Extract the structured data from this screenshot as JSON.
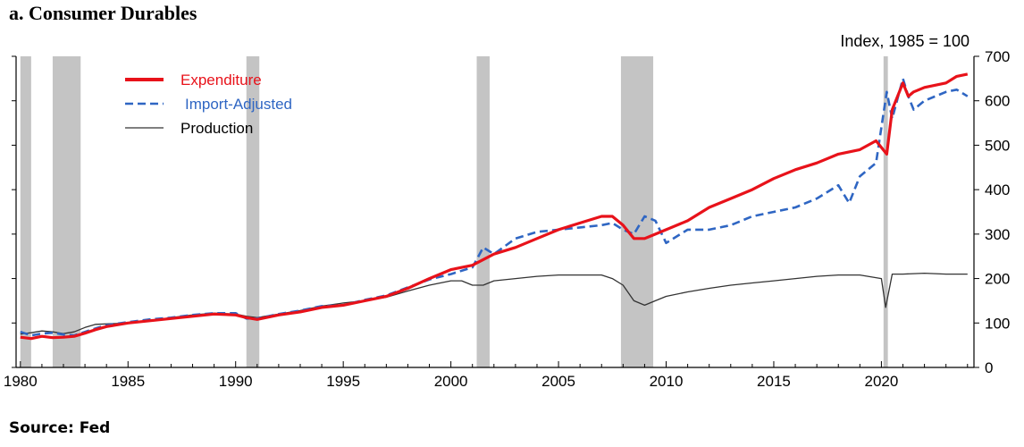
{
  "title": "a.   Consumer Durables",
  "source": "Source: Fed",
  "chart_data": {
    "type": "line",
    "ylabel": "Index, 1985 = 100",
    "ylim": [
      0,
      700
    ],
    "y_ticks": [
      0,
      100,
      200,
      300,
      400,
      500,
      600,
      700
    ],
    "xlim": [
      1979.8,
      2024.3
    ],
    "x_ticks": [
      1980,
      1985,
      1990,
      1995,
      2000,
      2005,
      2010,
      2015,
      2020
    ],
    "y_axis_side": "right",
    "grid": false,
    "legend_position": "top-left",
    "recessions": [
      [
        1980.0,
        1980.5
      ],
      [
        1981.5,
        1982.8
      ],
      [
        1990.5,
        1991.1
      ],
      [
        2001.2,
        2001.8
      ],
      [
        2007.9,
        2009.4
      ],
      [
        2020.1,
        2020.3
      ]
    ],
    "series": [
      {
        "name": "Expenditure",
        "color": "#e8121a",
        "style": "solid",
        "x": [
          1980.0,
          1980.5,
          1981.0,
          1981.5,
          1982.0,
          1982.5,
          1983.0,
          1983.5,
          1984.0,
          1985.0,
          1986.0,
          1987.0,
          1988.0,
          1989.0,
          1990.0,
          1990.5,
          1991.0,
          1992.0,
          1993.0,
          1994.0,
          1995.0,
          1996.0,
          1997.0,
          1998.0,
          1999.0,
          2000.0,
          2001.0,
          2002.0,
          2003.0,
          2004.0,
          2005.0,
          2006.0,
          2007.0,
          2007.5,
          2008.0,
          2008.5,
          2009.0,
          2009.5,
          2010.0,
          2011.0,
          2012.0,
          2013.0,
          2014.0,
          2015.0,
          2016.0,
          2017.0,
          2018.0,
          2019.0,
          2019.75,
          2020.25,
          2020.5,
          2021.0,
          2021.25,
          2021.5,
          2022.0,
          2023.0,
          2023.5,
          2024.0
        ],
        "values": [
          68,
          65,
          70,
          67,
          68,
          70,
          77,
          85,
          92,
          100,
          105,
          110,
          115,
          120,
          118,
          112,
          108,
          118,
          125,
          135,
          140,
          150,
          160,
          178,
          200,
          220,
          230,
          255,
          270,
          290,
          310,
          325,
          340,
          340,
          320,
          290,
          290,
          300,
          310,
          330,
          360,
          380,
          400,
          425,
          445,
          460,
          480,
          490,
          510,
          480,
          580,
          640,
          610,
          620,
          630,
          640,
          655,
          660
        ]
      },
      {
        "name": "Import-Adjusted",
        "color": "#2f66c3",
        "style": "dashed",
        "x": [
          1980.0,
          1980.5,
          1981.0,
          1981.5,
          1982.0,
          1982.5,
          1983.0,
          1983.5,
          1984.0,
          1985.0,
          1986.0,
          1987.0,
          1988.0,
          1989.0,
          1990.0,
          1990.5,
          1991.0,
          1992.0,
          1993.0,
          1994.0,
          1995.0,
          1996.0,
          1997.0,
          1998.0,
          1999.0,
          2000.0,
          2001.0,
          2001.5,
          2002.0,
          2003.0,
          2004.0,
          2005.0,
          2006.0,
          2007.0,
          2007.5,
          2008.0,
          2008.5,
          2009.0,
          2009.5,
          2010.0,
          2011.0,
          2012.0,
          2013.0,
          2014.0,
          2015.0,
          2016.0,
          2017.0,
          2018.0,
          2018.5,
          2019.0,
          2019.75,
          2020.25,
          2020.5,
          2021.0,
          2021.25,
          2021.5,
          2022.0,
          2023.0,
          2023.5,
          2024.0
        ],
        "values": [
          80,
          72,
          76,
          78,
          74,
          72,
          80,
          88,
          95,
          102,
          108,
          112,
          118,
          122,
          122,
          110,
          110,
          120,
          128,
          138,
          140,
          152,
          162,
          180,
          198,
          210,
          225,
          270,
          255,
          290,
          305,
          310,
          315,
          320,
          325,
          310,
          300,
          340,
          330,
          280,
          310,
          310,
          320,
          340,
          350,
          360,
          380,
          410,
          370,
          430,
          460,
          620,
          560,
          650,
          610,
          580,
          600,
          620,
          625,
          610
        ]
      },
      {
        "name": "Production",
        "color": "#333333",
        "style": "solid",
        "x": [
          1980.0,
          1980.5,
          1981.0,
          1981.5,
          1982.0,
          1982.5,
          1983.0,
          1983.5,
          1984.0,
          1985.0,
          1986.0,
          1987.0,
          1988.0,
          1989.0,
          1990.0,
          1990.5,
          1991.0,
          1992.0,
          1993.0,
          1994.0,
          1995.0,
          1996.0,
          1997.0,
          1998.0,
          1999.0,
          2000.0,
          2000.5,
          2001.0,
          2001.5,
          2002.0,
          2003.0,
          2004.0,
          2005.0,
          2006.0,
          2007.0,
          2007.5,
          2008.0,
          2008.5,
          2009.0,
          2009.5,
          2010.0,
          2011.0,
          2012.0,
          2013.0,
          2014.0,
          2015.0,
          2016.0,
          2017.0,
          2018.0,
          2019.0,
          2020.0,
          2020.2,
          2020.5,
          2021.0,
          2022.0,
          2023.0,
          2024.0
        ],
        "values": [
          75,
          78,
          82,
          80,
          76,
          80,
          90,
          97,
          98,
          100,
          105,
          112,
          118,
          122,
          120,
          115,
          112,
          120,
          128,
          138,
          145,
          150,
          158,
          172,
          185,
          195,
          195,
          185,
          185,
          195,
          200,
          205,
          208,
          208,
          208,
          200,
          185,
          150,
          140,
          150,
          160,
          170,
          178,
          185,
          190,
          195,
          200,
          205,
          208,
          208,
          200,
          135,
          210,
          210,
          212,
          210,
          210
        ]
      }
    ]
  }
}
